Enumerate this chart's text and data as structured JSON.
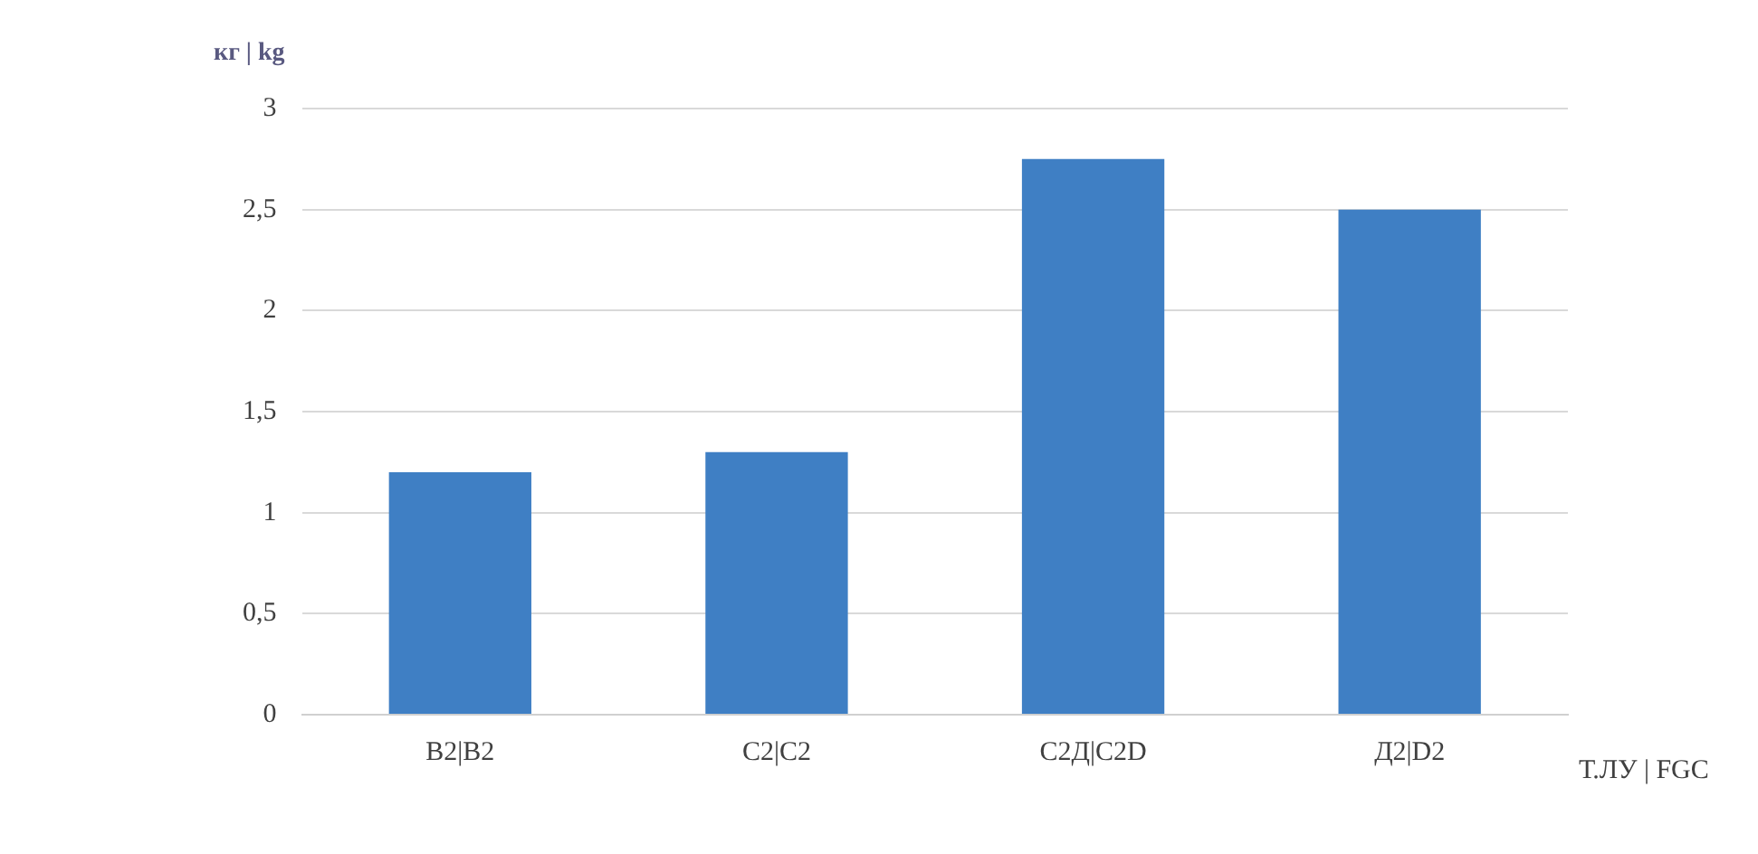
{
  "chart_data": {
    "type": "bar",
    "ylabel": "кг | kg",
    "xlabel": "Т.ЛУ | FGC",
    "categories": [
      "В2|B2",
      "С2|C2",
      "С2Д|C2D",
      "Д2|D2"
    ],
    "values": [
      1.2,
      1.3,
      2.75,
      2.5
    ],
    "color": "#3f7fc4",
    "ylim": [
      0,
      3
    ],
    "yticks": [
      0,
      {
        "value": 0.5,
        "label": "0,5"
      },
      1,
      {
        "value": 1.5,
        "label": "1,5"
      },
      2,
      {
        "value": 2.5,
        "label": "2,5"
      },
      3
    ],
    "grid": "y",
    "legend": false
  }
}
